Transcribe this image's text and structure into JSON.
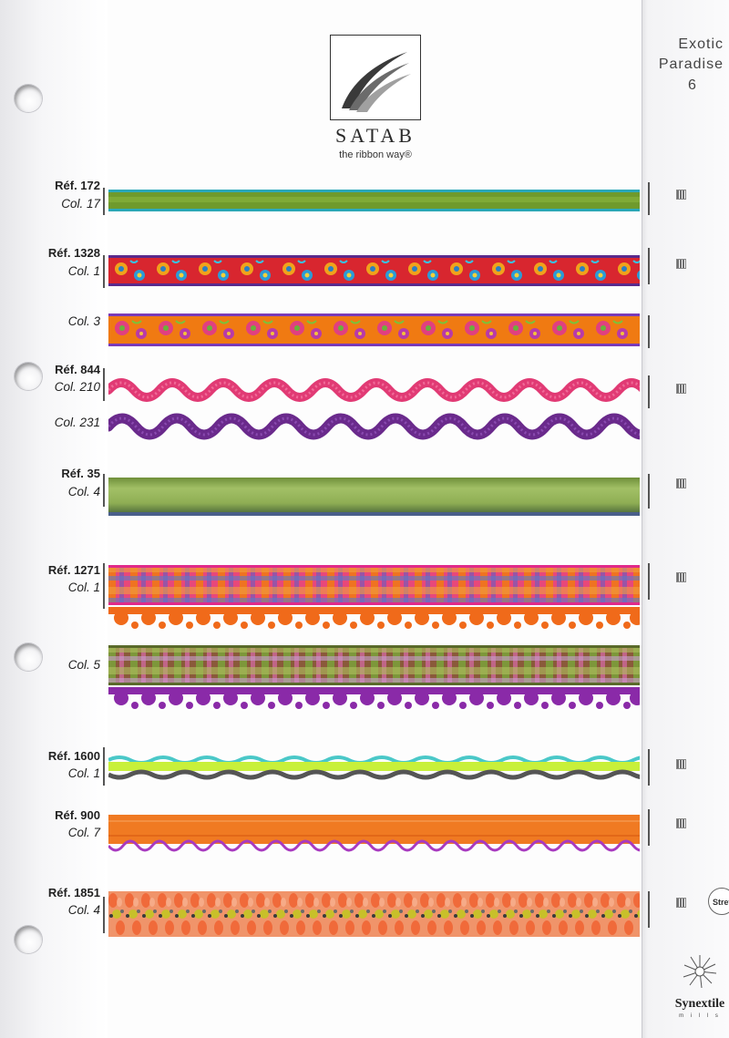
{
  "brand": {
    "name": "SATAB",
    "tagline": "the ribbon way®"
  },
  "collection": {
    "line1": "Exotic",
    "line2": "Paradise",
    "page_number": "6"
  },
  "entries": [
    {
      "ref": "Réf. 172",
      "col": "Col. 17"
    },
    {
      "ref": "Réf. 1328",
      "col": "Col. 1"
    },
    {
      "ref": "",
      "col": "Col. 3"
    },
    {
      "ref": "Réf. 844",
      "col": "Col. 210"
    },
    {
      "ref": "",
      "col": "Col. 231"
    },
    {
      "ref": "Réf. 35",
      "col": "Col. 4"
    },
    {
      "ref": "Réf. 1271",
      "col": "Col. 1"
    },
    {
      "ref": "",
      "col": "Col. 5"
    },
    {
      "ref": "Réf. 1600",
      "col": "Col. 1"
    },
    {
      "ref": "Réf. 900",
      "col": "Col. 7"
    },
    {
      "ref": "Réf. 1851",
      "col": "Col. 4"
    }
  ],
  "badges": {
    "stretch": "Stretch",
    "synextile": "Synextile",
    "synextile_sub": "m i l l s"
  },
  "colors": {
    "green": "#6f9a2c",
    "red": "#d8262f",
    "orange": "#f07a12",
    "pink": "#e13a74",
    "purple": "#6a2a8c",
    "sage": "#8fae54",
    "lime": "#c8f03a",
    "teal": "#2aa7b8"
  }
}
